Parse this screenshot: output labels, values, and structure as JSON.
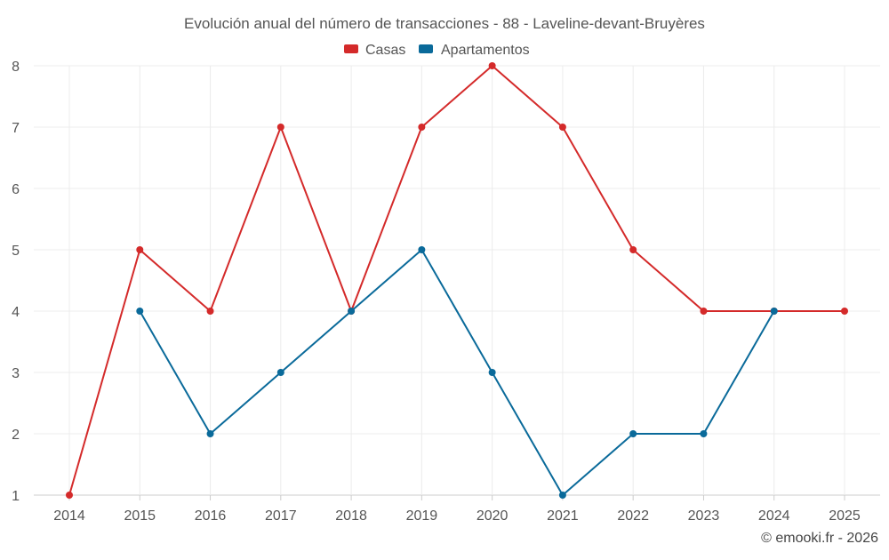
{
  "chart_data": {
    "type": "line",
    "title": "Evolución anual del número de transacciones - 88 - Laveline-devant-Bruyères",
    "categories": [
      "2014",
      "2015",
      "2016",
      "2017",
      "2018",
      "2019",
      "2020",
      "2021",
      "2022",
      "2023",
      "2024",
      "2025"
    ],
    "ylim": [
      1,
      8
    ],
    "yticks": [
      1,
      2,
      3,
      4,
      5,
      6,
      7,
      8
    ],
    "grid": true,
    "legend_position": "top-center",
    "series": [
      {
        "name": "Casas",
        "color": "#d42a2a",
        "values": [
          1,
          5,
          4,
          7,
          4,
          7,
          8,
          7,
          5,
          4,
          4,
          4
        ]
      },
      {
        "name": "Apartamentos",
        "color": "#0a6a9a",
        "values": [
          null,
          4,
          2,
          3,
          4,
          5,
          3,
          1,
          2,
          2,
          4,
          null
        ]
      }
    ],
    "credit": "© emooki.fr - 2026"
  }
}
